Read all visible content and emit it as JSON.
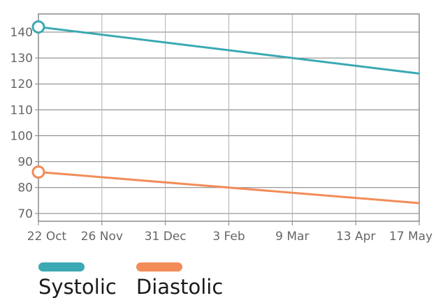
{
  "chart_data": {
    "type": "line",
    "x": [
      "2022-10-22",
      "2023-05-20"
    ],
    "x_ticks": [
      "22 Oct",
      "26 Nov",
      "31 Dec",
      "3 Feb",
      "9 Mar",
      "13 Apr",
      "17 May"
    ],
    "ylim": [
      67,
      147
    ],
    "y_ticks": [
      70,
      80,
      90,
      100,
      110,
      120,
      130,
      140
    ],
    "grid": true,
    "legend_position": "bottom-left",
    "series": [
      {
        "name": "Systolic",
        "values": [
          142,
          124
        ],
        "color": "#3aa9b3"
      },
      {
        "name": "Diastolic",
        "values": [
          86,
          74
        ],
        "color": "#f28c58"
      }
    ]
  }
}
